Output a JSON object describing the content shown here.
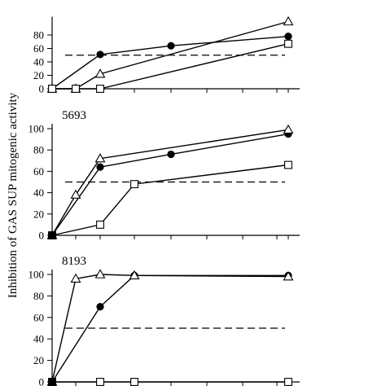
{
  "figure": {
    "ylabel": "Inhibition of GAS SUP mitogenic activity"
  },
  "chart_data": [
    {
      "type": "line",
      "title": "",
      "ylim": [
        0,
        100
      ],
      "yticks": [
        0,
        20,
        40,
        60,
        80
      ],
      "reference_line": 50,
      "x": [
        0,
        1,
        2,
        3,
        4,
        5
      ],
      "series": [
        {
          "marker": "filled-circle",
          "values": [
            0,
            null,
            51,
            null,
            64,
            78
          ]
        },
        {
          "marker": "open-triangle",
          "values": [
            0,
            0,
            22,
            null,
            null,
            100
          ]
        },
        {
          "marker": "open-square",
          "values": [
            0,
            0,
            0,
            null,
            null,
            67
          ]
        }
      ]
    },
    {
      "type": "line",
      "title": "5693",
      "ylim": [
        0,
        100
      ],
      "yticks": [
        0,
        20,
        40,
        60,
        80,
        100
      ],
      "reference_line": 50,
      "x": [
        0,
        1,
        2,
        3,
        4,
        5
      ],
      "series": [
        {
          "marker": "filled-circle",
          "values": [
            0,
            null,
            64,
            null,
            76,
            95
          ]
        },
        {
          "marker": "open-triangle",
          "values": [
            0,
            38,
            72,
            null,
            null,
            99
          ]
        },
        {
          "marker": "open-square",
          "values": [
            0,
            null,
            10,
            48,
            null,
            66
          ]
        }
      ]
    },
    {
      "type": "line",
      "title": "8193",
      "ylim": [
        0,
        100
      ],
      "yticks": [
        0,
        20,
        40,
        60,
        80,
        100
      ],
      "reference_line": 50,
      "x": [
        0,
        1,
        2,
        3,
        4,
        5
      ],
      "series": [
        {
          "marker": "filled-circle",
          "values": [
            0,
            null,
            70,
            99,
            null,
            99
          ]
        },
        {
          "marker": "open-triangle",
          "values": [
            0,
            96,
            100,
            99,
            null,
            98
          ]
        },
        {
          "marker": "open-square",
          "values": [
            0,
            null,
            0,
            0,
            null,
            0
          ]
        }
      ]
    }
  ]
}
